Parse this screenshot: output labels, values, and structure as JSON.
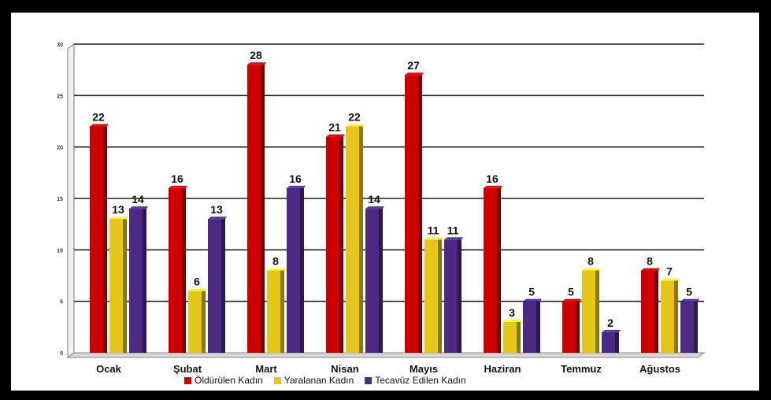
{
  "chart_data": {
    "type": "bar",
    "categories": [
      "Ocak",
      "Şubat",
      "Mart",
      "Nisan",
      "Mayıs",
      "Haziran",
      "Temmuz",
      "Ağustos"
    ],
    "series": [
      {
        "name": "Öldürülen Kadın",
        "color": "#cc0000",
        "values": [
          22,
          16,
          28,
          21,
          27,
          16,
          5,
          8
        ]
      },
      {
        "name": "Yaralanan Kadın",
        "color": "#e6c619",
        "values": [
          13,
          6,
          8,
          22,
          11,
          3,
          8,
          7
        ]
      },
      {
        "name": "Tecavüz Edilen Kadın",
        "color": "#4b2a84",
        "values": [
          14,
          13,
          16,
          14,
          11,
          5,
          2,
          5
        ]
      }
    ],
    "ylim": [
      0,
      30
    ],
    "yticks": [
      0,
      5,
      10,
      15,
      20,
      25,
      30
    ],
    "grid": true,
    "legend_position": "bottom"
  }
}
